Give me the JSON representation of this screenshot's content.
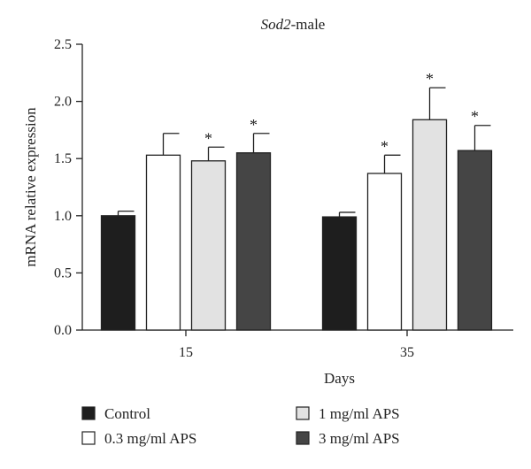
{
  "chart_data": {
    "type": "bar",
    "title_italic": "Sod2",
    "title_rest": "-male",
    "xlabel": "Days",
    "ylabel": "mRNA relative expression",
    "ylim": [
      0,
      2.5
    ],
    "yticks": [
      "0.0",
      "0.5",
      "1.0",
      "1.5",
      "2.0",
      "2.5"
    ],
    "ytick_values": [
      0,
      0.5,
      1.0,
      1.5,
      2.0,
      2.5
    ],
    "categories": [
      "15",
      "35"
    ],
    "series": [
      {
        "name": "Control",
        "color": "#1e1e1e",
        "values": [
          1.0,
          0.99
        ],
        "errors": [
          0.04,
          0.04
        ],
        "significant": [
          false,
          false
        ]
      },
      {
        "name": "0.3 mg/ml APS",
        "color": "#ffffff",
        "values": [
          1.53,
          1.37
        ],
        "errors": [
          0.19,
          0.16
        ],
        "significant": [
          false,
          true
        ]
      },
      {
        "name": "1 mg/ml APS",
        "color": "#e2e2e2",
        "values": [
          1.48,
          1.84
        ],
        "errors": [
          0.12,
          0.28
        ],
        "significant": [
          true,
          true
        ]
      },
      {
        "name": "3 mg/ml APS",
        "color": "#454545",
        "values": [
          1.55,
          1.57
        ],
        "errors": [
          0.17,
          0.22
        ],
        "significant": [
          true,
          true
        ]
      }
    ],
    "significance_marker": "*",
    "grid": false,
    "legend_position": "bottom"
  }
}
